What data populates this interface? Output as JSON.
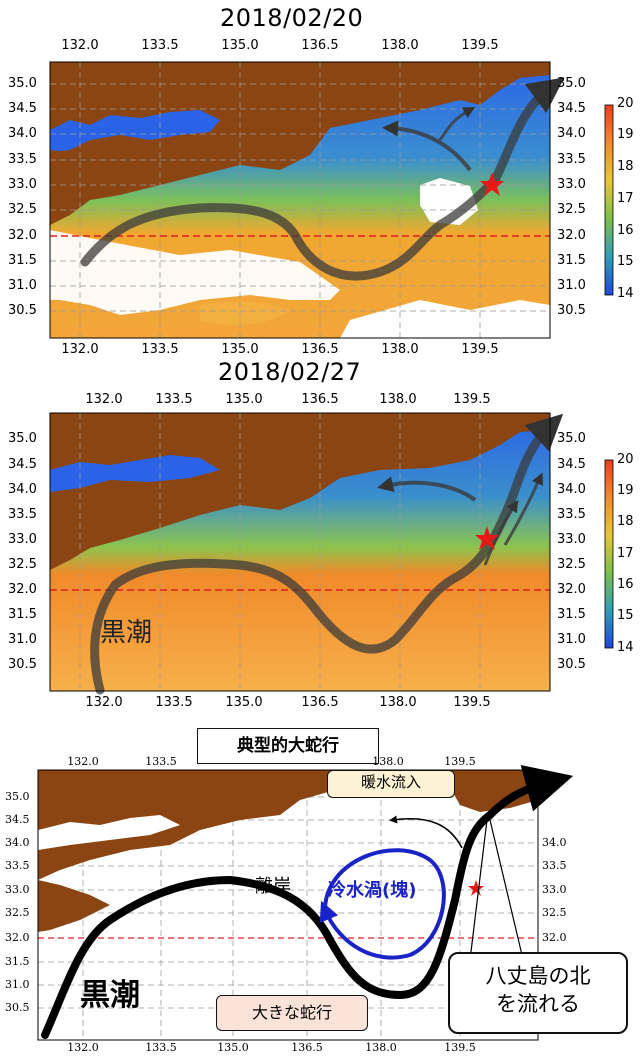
{
  "panel1": {
    "date": "2018/02/20",
    "xticks": [
      "132.0",
      "133.5",
      "135.0",
      "136.5",
      "138.0",
      "139.5"
    ],
    "yticks": [
      "35.0",
      "34.5",
      "34.0",
      "33.5",
      "33.0",
      "32.5",
      "32.0",
      "31.5",
      "31.0",
      "30.5"
    ],
    "colorbar": [
      "20",
      "19",
      "18",
      "17",
      "16",
      "15",
      "14"
    ]
  },
  "panel2": {
    "date": "2018/02/27",
    "xticks": [
      "132.0",
      "133.5",
      "135.0",
      "136.5",
      "138.0",
      "139.5"
    ],
    "yticks": [
      "35.0",
      "34.5",
      "34.0",
      "33.5",
      "33.0",
      "32.5",
      "32.0",
      "31.5",
      "31.0",
      "30.5"
    ],
    "colorbar": [
      "20",
      "19",
      "18",
      "17",
      "16",
      "15",
      "14"
    ],
    "current_label": "黒潮"
  },
  "panel3": {
    "box_title": "典型的大蛇行",
    "xticks": [
      "132.0",
      "133.5",
      "135.0",
      "136.5",
      "138.0",
      "139.5"
    ],
    "yticks": [
      "35.0",
      "34.5",
      "34.0",
      "33.5",
      "33.0",
      "32.5",
      "32.0",
      "31.5",
      "31.0",
      "30.5"
    ],
    "current_label": "黒潮",
    "offshore_label": "離岸",
    "cold_eddy_label": "冷水渦(塊)",
    "warm_inflow_label": "暖水流入",
    "big_meander_label": "大きな蛇行",
    "hachijo_label_line1": "八丈島の北",
    "hachijo_label_line2": "を流れる"
  },
  "colors": {
    "land": "#8b4513",
    "cold": "#1e5ae6",
    "warm": "#f29b2a",
    "current_arrow": "#3b3b3b",
    "eddy": "#1a23c8",
    "reference_line": "#e02020",
    "star": "#e81818"
  }
}
